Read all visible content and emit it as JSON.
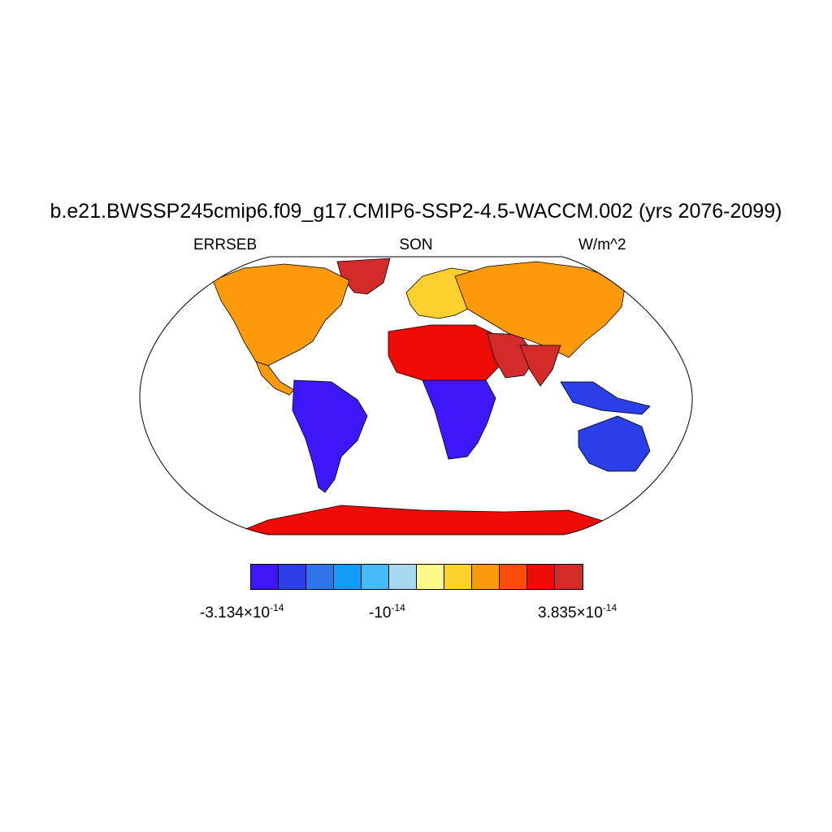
{
  "title": "b.e21.BWSSP245cmip6.f09_g17.CMIP6-SSP2-4.5-WACCM.002 (yrs 2076-2099)",
  "subtitles": {
    "left": "ERRSEB",
    "center": "SON",
    "right": "W/m^2"
  },
  "colorbar": {
    "colors": [
      "#3d17f7",
      "#2b3ee7",
      "#3074ea",
      "#129cf6",
      "#48baf3",
      "#a6d8f0",
      "#fdf88a",
      "#fdd02d",
      "#fd9a0c",
      "#fb4d08",
      "#ee0a05",
      "#d52a2a"
    ],
    "labels": {
      "min": {
        "mantissa": "-3.134×10",
        "exponent": "-14"
      },
      "mid": {
        "mantissa": "-10",
        "exponent": "-14"
      },
      "max": {
        "mantissa": "3.835×10",
        "exponent": "-14"
      }
    }
  },
  "map_regions": [
    {
      "name": "north-america",
      "level": 8
    },
    {
      "name": "greenland",
      "level": 11
    },
    {
      "name": "south-america",
      "level": 0
    },
    {
      "name": "europe",
      "level": 7
    },
    {
      "name": "africa-north",
      "level": 10
    },
    {
      "name": "africa-south",
      "level": 0
    },
    {
      "name": "arabia",
      "level": 11
    },
    {
      "name": "asia",
      "level": 8
    },
    {
      "name": "india",
      "level": 11
    },
    {
      "name": "southeast-asia",
      "level": 1
    },
    {
      "name": "australia",
      "level": 1
    },
    {
      "name": "antarctica",
      "level": 10
    }
  ]
}
